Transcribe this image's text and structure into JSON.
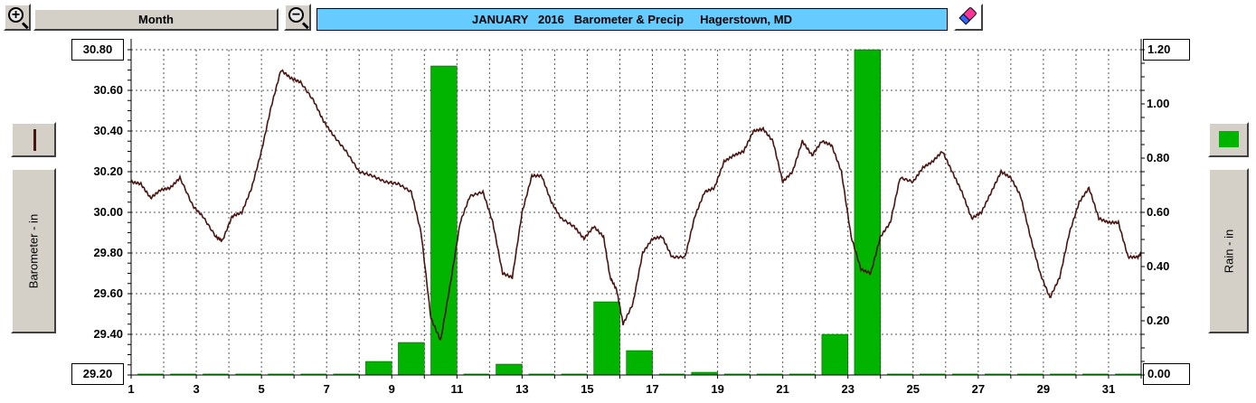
{
  "toolbar": {
    "zoom_in_icon": "zoom-in-icon",
    "zoom_out_icon": "zoom-out-icon",
    "period_label": "Month",
    "title": "JANUARY   2016   Barometer & Precip     Hagerstown, MD",
    "eraser_icon": "eraser-icon"
  },
  "axes": {
    "left_label": "Barometer - in",
    "right_label": "Rain - in",
    "left_top_value": "30.80",
    "left_bottom_value": "29.20",
    "right_top_value": "1.20",
    "right_bottom_value": "0.00"
  },
  "colors": {
    "barometer": "#4a1410",
    "rain": "#00b400",
    "title_bg": "#66ccff"
  },
  "chart_data": {
    "type": "bar",
    "xlim": [
      1,
      32
    ],
    "x_ticks": [
      "1",
      "3",
      "5",
      "7",
      "9",
      "11",
      "13",
      "15",
      "17",
      "19",
      "21",
      "23",
      "25",
      "27",
      "29",
      "31"
    ],
    "grid": true,
    "series": [
      {
        "name": "Barometer - in",
        "type": "line",
        "axis": "left",
        "ylim": [
          29.2,
          30.8
        ],
        "y_ticks": [
          "29.20",
          "29.40",
          "29.60",
          "29.80",
          "30.00",
          "30.20",
          "30.40",
          "30.60",
          "30.80"
        ],
        "x": [
          1,
          1.3,
          1.6,
          1.9,
          2.2,
          2.5,
          2.9,
          3.2,
          3.6,
          3.8,
          4.1,
          4.4,
          4.7,
          5.0,
          5.3,
          5.6,
          5.9,
          6.2,
          6.6,
          6.9,
          7.2,
          7.6,
          8.0,
          8.4,
          8.8,
          9.2,
          9.6,
          9.9,
          10.2,
          10.5,
          10.8,
          11.1,
          11.4,
          11.8,
          12.1,
          12.4,
          12.7,
          13.0,
          13.3,
          13.6,
          13.9,
          14.2,
          14.6,
          14.9,
          15.2,
          15.5,
          15.7,
          15.9,
          16.1,
          16.4,
          16.7,
          17.0,
          17.3,
          17.6,
          18.0,
          18.3,
          18.6,
          18.9,
          19.2,
          19.5,
          19.8,
          20.1,
          20.4,
          20.7,
          21.0,
          21.3,
          21.6,
          21.9,
          22.2,
          22.5,
          22.8,
          23.1,
          23.4,
          23.7,
          24.0,
          24.3,
          24.6,
          25.0,
          25.3,
          25.6,
          25.9,
          26.2,
          26.5,
          26.8,
          27.1,
          27.4,
          27.7,
          28.0,
          28.3,
          28.6,
          28.9,
          29.2,
          29.5,
          29.8,
          30.1,
          30.4,
          30.7,
          31.0,
          31.3,
          31.6,
          31.9,
          32
        ],
        "y": [
          30.15,
          30.14,
          30.07,
          30.11,
          30.12,
          30.17,
          30.03,
          29.98,
          29.88,
          29.86,
          29.98,
          30.0,
          30.12,
          30.3,
          30.52,
          30.7,
          30.66,
          30.64,
          30.55,
          30.45,
          30.38,
          30.3,
          30.2,
          30.18,
          30.15,
          30.14,
          30.1,
          29.9,
          29.48,
          29.37,
          29.65,
          29.95,
          30.08,
          30.1,
          29.95,
          29.7,
          29.68,
          30.0,
          30.18,
          30.18,
          30.05,
          29.97,
          29.93,
          29.87,
          29.93,
          29.88,
          29.68,
          29.62,
          29.45,
          29.55,
          29.8,
          29.87,
          29.88,
          29.78,
          29.78,
          29.98,
          30.1,
          30.12,
          30.25,
          30.28,
          30.3,
          30.4,
          30.41,
          30.35,
          30.15,
          30.2,
          30.35,
          30.28,
          30.35,
          30.33,
          30.2,
          29.88,
          29.72,
          29.7,
          29.88,
          29.95,
          30.17,
          30.15,
          30.22,
          30.25,
          30.3,
          30.2,
          30.1,
          29.97,
          30.0,
          30.1,
          30.2,
          30.17,
          30.08,
          29.88,
          29.7,
          29.58,
          29.68,
          29.9,
          30.05,
          30.12,
          29.97,
          29.95,
          29.95,
          29.78,
          29.78,
          29.8
        ]
      },
      {
        "name": "Rain - in",
        "type": "bar",
        "axis": "right",
        "ylim": [
          0,
          1.2
        ],
        "y_ticks": [
          "0.00",
          "0.20",
          "0.40",
          "0.60",
          "0.80",
          "1.00",
          "1.20"
        ],
        "categories": [
          "1",
          "2",
          "3",
          "4",
          "5",
          "6",
          "7",
          "8",
          "9",
          "10",
          "11",
          "12",
          "13",
          "14",
          "15",
          "16",
          "17",
          "18",
          "19",
          "20",
          "21",
          "22",
          "23",
          "24",
          "25",
          "26",
          "27",
          "28",
          "29",
          "30",
          "31"
        ],
        "values": [
          0,
          0,
          0,
          0,
          0,
          0,
          0,
          0.05,
          0.12,
          1.14,
          0,
          0.04,
          0,
          0,
          0.27,
          0.09,
          0,
          0.01,
          0,
          0,
          0,
          0.15,
          1.2,
          0,
          0,
          0,
          0,
          0,
          0,
          0,
          0
        ]
      }
    ]
  }
}
